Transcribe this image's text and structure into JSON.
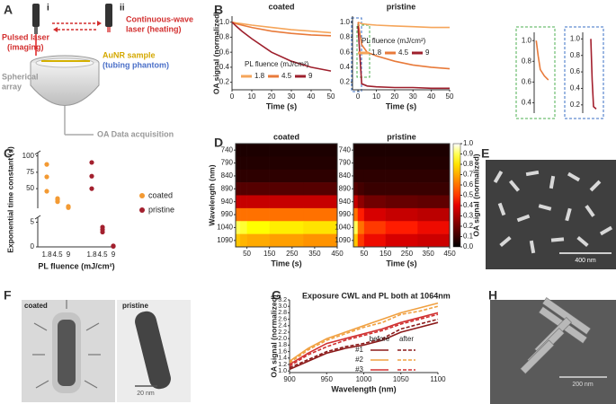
{
  "panel_labels": [
    "A",
    "B",
    "C",
    "D",
    "E",
    "F",
    "G",
    "H"
  ],
  "diagram": {
    "laser_labels": [
      "i",
      "ii"
    ],
    "pulsed_laser": [
      "Pulsed laser",
      "(imaging)"
    ],
    "cw_laser": [
      "Continuous-wave",
      "laser (heating)"
    ],
    "sample": [
      "AuNR sample",
      "(tubing phantom)"
    ],
    "array": [
      "Spherical",
      "array"
    ],
    "acquisition": "OA Data acquisition"
  },
  "images": {
    "E": {
      "scale_bar": "400 nm"
    },
    "F": {
      "labels": [
        "coated",
        "pristine"
      ],
      "scale_bar": "20 nm"
    },
    "H": {
      "scale_bar": "200 nm"
    }
  },
  "chart_data": [
    {
      "type": "line",
      "title": "coated",
      "ylabel": "OA signal (normalized)",
      "xlabel": "Time (s)",
      "xlim": [
        0,
        50
      ],
      "xticks": [
        0,
        10,
        20,
        30,
        40,
        50
      ],
      "ylim": [
        0.1,
        1.08
      ],
      "yticks": [
        0.2,
        0.4,
        0.6,
        0.8,
        {
          "value": 1,
          "label": "1.0"
        }
      ],
      "x": [
        0,
        2,
        5,
        10,
        20,
        30,
        40,
        50
      ],
      "legend_title": "PL fluence (mJ/cm²)",
      "series": [
        {
          "name": "1.8",
          "color": "#f5a55a",
          "values": [
            1.0,
            0.99,
            0.98,
            0.96,
            0.93,
            0.9,
            0.88,
            0.86
          ]
        },
        {
          "name": "4.5",
          "color": "#e87a3a",
          "values": [
            1.0,
            0.98,
            0.96,
            0.93,
            0.88,
            0.85,
            0.83,
            0.82
          ]
        },
        {
          "name": "9",
          "color": "#9e1f2c",
          "values": [
            1.0,
            0.95,
            0.88,
            0.78,
            0.6,
            0.48,
            0.4,
            0.35
          ]
        }
      ]
    },
    {
      "type": "line",
      "title": "pristine",
      "xlabel": "Time (s)",
      "xlim": [
        -3,
        50
      ],
      "xticks": [
        0,
        10,
        20,
        30,
        40,
        50
      ],
      "ylim": [
        0.1,
        1.08
      ],
      "yticks": [
        0.2,
        0.4,
        0.6,
        0.8,
        {
          "value": 1,
          "label": "1.0"
        }
      ],
      "x": [
        0,
        2,
        5,
        10,
        20,
        30,
        40,
        50
      ],
      "legend_title": "PL fluence (mJ/cm²)",
      "series": [
        {
          "name": "1.8",
          "color": "#f5a55a",
          "values": [
            1.0,
            0.98,
            0.97,
            0.96,
            0.95,
            0.94,
            0.93,
            0.93
          ]
        },
        {
          "name": "4.5",
          "color": "#e87a3a",
          "values": [
            1.0,
            0.7,
            0.6,
            0.55,
            0.48,
            0.43,
            0.4,
            0.38
          ]
        },
        {
          "name": "9",
          "color": "#9e1f2c",
          "values": [
            0.95,
            0.18,
            0.15,
            0.14,
            0.13,
            0.13,
            0.12,
            0.12
          ]
        }
      ]
    },
    {
      "type": "scatter",
      "ylabel": "Exponential time constant (s)",
      "xlabel": "PL fluence (mJ/cm²)",
      "categories": [
        "1.8",
        "4.5",
        "9",
        "1.8",
        "4.5",
        "9"
      ],
      "y_segments": [
        {
          "ylim": [
            0,
            6
          ],
          "yticks": [
            0,
            5
          ]
        },
        {
          "ylim": [
            20,
            105
          ],
          "yticks": [
            50,
            75,
            100
          ]
        }
      ],
      "series": [
        {
          "name": "coated",
          "color": "#f39a33",
          "values": [
            [
              87,
              68,
              46
            ],
            [
              35,
              30,
              33
            ],
            [
              22,
              21,
              23
            ],
            null,
            null,
            null
          ]
        },
        {
          "name": "pristine",
          "color": "#a3202e",
          "values": [
            null,
            null,
            null,
            [
              90,
              69,
              50
            ],
            [
              4,
              3.5,
              3
            ],
            [
              0.2,
              0.1,
              0.15
            ]
          ]
        }
      ]
    },
    {
      "type": "heatmap",
      "title": "coated",
      "ylabel": "Wavelength (nm)",
      "xlabel": "Time (s)",
      "xlim": [
        0,
        450
      ],
      "xticks": [
        50,
        150,
        250,
        350,
        450
      ],
      "ylim": [
        715,
        1115
      ],
      "yticks": [
        740,
        790,
        840,
        890,
        940,
        990,
        1040,
        1090
      ],
      "xbins": [
        0,
        20,
        50,
        150,
        300,
        450
      ],
      "y": [
        740,
        790,
        840,
        890,
        940,
        990,
        1040,
        1090
      ],
      "z": [
        [
          0.05,
          0.05,
          0.05,
          0.05,
          0.05
        ],
        [
          0.06,
          0.06,
          0.06,
          0.06,
          0.06
        ],
        [
          0.08,
          0.08,
          0.08,
          0.08,
          0.08
        ],
        [
          0.15,
          0.15,
          0.15,
          0.15,
          0.15
        ],
        [
          0.35,
          0.35,
          0.35,
          0.35,
          0.35
        ],
        [
          0.6,
          0.6,
          0.6,
          0.6,
          0.6
        ],
        [
          0.9,
          0.88,
          0.85,
          0.82,
          0.8
        ],
        [
          0.75,
          0.72,
          0.7,
          0.68,
          0.66
        ]
      ]
    },
    {
      "type": "heatmap",
      "title": "pristine",
      "xlabel": "Time (s)",
      "xlim": [
        0,
        450
      ],
      "xticks": [
        50,
        150,
        250,
        350,
        450
      ],
      "ylim": [
        715,
        1115
      ],
      "yticks": [
        740,
        790,
        840,
        890,
        940,
        990,
        1040,
        1090
      ],
      "xbins": [
        0,
        20,
        50,
        150,
        300,
        450
      ],
      "y": [
        740,
        790,
        840,
        890,
        940,
        990,
        1040,
        1090
      ],
      "z": [
        [
          0.05,
          0.05,
          0.05,
          0.05,
          0.05
        ],
        [
          0.06,
          0.06,
          0.06,
          0.06,
          0.06
        ],
        [
          0.08,
          0.08,
          0.08,
          0.08,
          0.08
        ],
        [
          0.15,
          0.12,
          0.1,
          0.1,
          0.1
        ],
        [
          0.35,
          0.25,
          0.2,
          0.18,
          0.17
        ],
        [
          0.6,
          0.45,
          0.38,
          0.35,
          0.33
        ],
        [
          0.9,
          0.6,
          0.5,
          0.45,
          0.42
        ],
        [
          0.75,
          0.5,
          0.42,
          0.38,
          0.36
        ]
      ],
      "colorbar": {
        "label": "OA signal (normalized)",
        "clim": [
          0,
          1
        ],
        "ticks": [
          {
            "value": 0,
            "label": "0.0"
          },
          0.1,
          0.2,
          0.3,
          0.4,
          0.5,
          0.6,
          0.7,
          0.8,
          0.9,
          {
            "value": 1,
            "label": "1.0"
          }
        ]
      }
    },
    {
      "type": "line",
      "title": "Exposure CWL and PL both at 1064nm",
      "ylabel": "OA signal (normalized)",
      "xlabel": "Wavelength (nm)",
      "xlim": [
        900,
        1100
      ],
      "xticks": [
        900,
        950,
        1000,
        1050,
        1100
      ],
      "ylim": [
        0.95,
        3.2
      ],
      "yticks": [
        {
          "value": 1,
          "label": "1.0"
        },
        1.2,
        1.4,
        1.6,
        1.8,
        {
          "value": 2,
          "label": "2.0"
        },
        2.2,
        2.4,
        2.6,
        2.8,
        {
          "value": 3,
          "label": "3.0"
        },
        3.2
      ],
      "x": [
        900,
        925,
        950,
        975,
        1000,
        1025,
        1050,
        1075,
        1100
      ],
      "legend": {
        "columns": [
          "before",
          "after"
        ],
        "rows": [
          "#1",
          "#2",
          "#3"
        ]
      },
      "series": [
        {
          "color": "#8b1a1a",
          "dashed": false,
          "values": [
            1.05,
            1.3,
            1.55,
            1.7,
            1.8,
            1.95,
            2.2,
            2.35,
            2.5
          ]
        },
        {
          "color": "#8b1a1a",
          "dashed": true,
          "values": [
            1.1,
            1.35,
            1.6,
            1.75,
            1.85,
            2.0,
            2.3,
            2.45,
            2.6
          ]
        },
        {
          "color": "#f0a040",
          "dashed": false,
          "values": [
            1.3,
            1.7,
            2.0,
            2.2,
            2.4,
            2.6,
            2.8,
            2.95,
            3.1
          ]
        },
        {
          "color": "#f0a040",
          "dashed": true,
          "values": [
            1.25,
            1.65,
            1.95,
            2.15,
            2.35,
            2.5,
            2.75,
            2.85,
            3.0
          ]
        },
        {
          "color": "#d03030",
          "dashed": false,
          "values": [
            1.2,
            1.55,
            1.85,
            2.0,
            2.15,
            2.3,
            2.5,
            2.65,
            2.8
          ]
        },
        {
          "color": "#d03030",
          "dashed": true,
          "values": [
            1.15,
            1.5,
            1.75,
            1.95,
            2.1,
            2.25,
            2.45,
            2.6,
            2.75
          ]
        }
      ]
    },
    {
      "type": "line",
      "frame_color": "#4caf50",
      "xlim": [
        -0.5,
        3.5
      ],
      "ylim": [
        0.3,
        1.08
      ],
      "yticks": [
        0.4,
        0.6,
        0.8,
        {
          "value": 1,
          "label": "1.0"
        }
      ],
      "x": [
        0,
        0.5,
        1,
        2,
        3
      ],
      "series": [
        {
          "color": "#e87a3a",
          "values": [
            1.0,
            0.85,
            0.72,
            0.66,
            0.62
          ]
        }
      ]
    },
    {
      "type": "line",
      "frame_color": "#3a6fc4",
      "xlim": [
        -0.3,
        0.3
      ],
      "ylim": [
        0.1,
        1.08
      ],
      "yticks": [
        0.2,
        0.4,
        0.6,
        0.8,
        {
          "value": 1,
          "label": "1.0"
        }
      ],
      "x": [
        0,
        0.05,
        0.1,
        0.2
      ],
      "series": [
        {
          "color": "#a3202e",
          "values": [
            1.0,
            0.5,
            0.18,
            0.15
          ]
        }
      ]
    }
  ]
}
